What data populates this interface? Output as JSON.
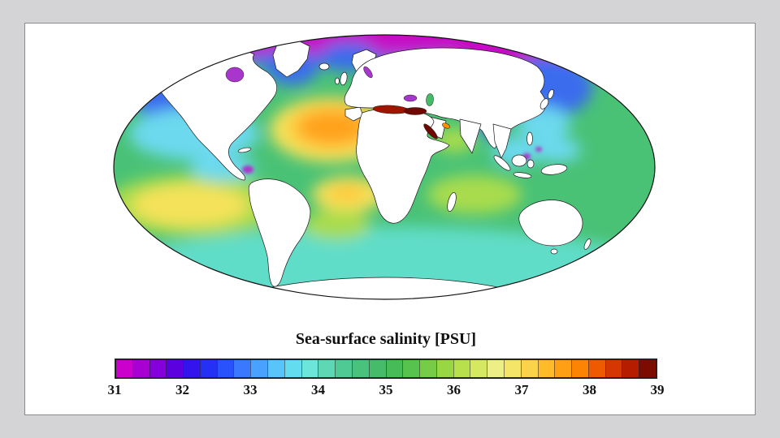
{
  "slide": {
    "background": "#d4d4d7",
    "panel_border": "#8a8a8a"
  },
  "figure": {
    "title": "Sea-surface salinity [PSU]"
  },
  "colorbar": {
    "min": 31,
    "max": 39,
    "ticks": [
      "31",
      "32",
      "33",
      "34",
      "35",
      "36",
      "37",
      "38",
      "39"
    ],
    "segments": [
      "#cc00cc",
      "#a800d4",
      "#8400dc",
      "#5c00e0",
      "#3414ec",
      "#2430f4",
      "#2a52fc",
      "#3a78ff",
      "#49a2ff",
      "#58c4fa",
      "#64dcf0",
      "#6ce6da",
      "#5ed8b4",
      "#50ca94",
      "#48c27c",
      "#46bc6a",
      "#47bb58",
      "#58c24e",
      "#76cc46",
      "#98d644",
      "#b8e04c",
      "#d4e862",
      "#ecee86",
      "#f4e468",
      "#fbd348",
      "#ffbc28",
      "#ffa014",
      "#fc8404",
      "#ee5a00",
      "#d63600",
      "#b51c00",
      "#7c0c00"
    ]
  },
  "map": {
    "colors": {
      "base": "#49c276",
      "southern_cyan": "#60ddc8",
      "polar_magenta": "#c50cc5",
      "blue": "#3a6cee",
      "light_cyan": "#6cd9ee",
      "yellow": "#f4e25a",
      "amber": "#ffc93e",
      "orange": "#ffa21e",
      "yellow_green": "#a9dc4d",
      "med_red": "#a01400",
      "dark_red": "#6e0800",
      "purple": "#a835cc",
      "caspian_green": "#44bb66",
      "gulf_orange": "#ff9000",
      "land": "#ffffff",
      "outline": "#111111"
    }
  },
  "chart_data": {
    "type": "heatmap",
    "title": "Sea-surface salinity [PSU]",
    "units": "PSU",
    "projection": "elliptical (Mollweide-style) world map",
    "value_range": [
      31,
      39
    ],
    "colorbar_ticks": [
      31,
      32,
      33,
      34,
      35,
      36,
      37,
      38,
      39
    ],
    "palette_description": "magenta - purple - blue - cyan - green - yellow - orange - red - dark red",
    "legend_position": "bottom horizontal colorbar",
    "regions": [
      {
        "name": "Arctic Ocean margin",
        "approx_value": 31
      },
      {
        "name": "Bering Sea",
        "approx_value": 31.5
      },
      {
        "name": "Subpolar North Pacific",
        "approx_value": 32.5
      },
      {
        "name": "Labrador / Nordic Seas",
        "approx_value": 33
      },
      {
        "name": "Hudson Bay",
        "approx_value": 31.5
      },
      {
        "name": "Baltic Sea",
        "approx_value": 31
      },
      {
        "name": "Black Sea",
        "approx_value": 31.5
      },
      {
        "name": "North Atlantic subtropical gyre",
        "approx_value": 37.5
      },
      {
        "name": "Mediterranean Sea",
        "approx_value": 38.5
      },
      {
        "name": "Eastern Mediterranean",
        "approx_value": 39
      },
      {
        "name": "Red Sea",
        "approx_value": 39
      },
      {
        "name": "Persian Gulf",
        "approx_value": 38
      },
      {
        "name": "Arabian Sea",
        "approx_value": 36.5
      },
      {
        "name": "Bay of Bengal",
        "approx_value": 32.5
      },
      {
        "name": "Indonesian seas",
        "approx_value": 33
      },
      {
        "name": "Tropical eastern Pacific",
        "approx_value": 33.5
      },
      {
        "name": "Equatorial Pacific",
        "approx_value": 34.5
      },
      {
        "name": "South Pacific subtropical gyre",
        "approx_value": 36.5
      },
      {
        "name": "Tropical / subtropical Atlantic",
        "approx_value": 37
      },
      {
        "name": "South Atlantic gyre",
        "approx_value": 36
      },
      {
        "name": "South Indian subtropical gyre",
        "approx_value": 35.5
      },
      {
        "name": "Southern Ocean",
        "approx_value": 34
      }
    ]
  }
}
